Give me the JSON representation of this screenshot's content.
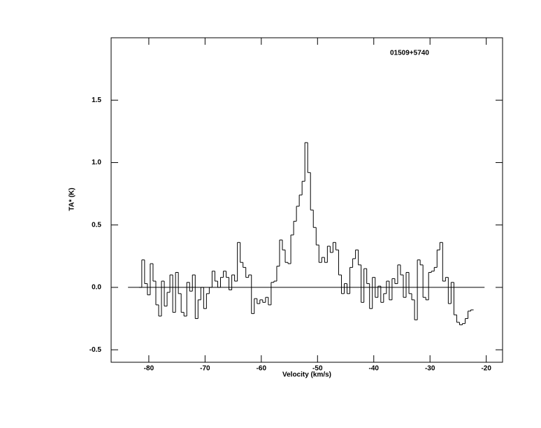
{
  "chart_data": {
    "type": "step",
    "title": "01509+5740",
    "xlabel": "Velocity (km/s)",
    "ylabel": "TA* (K)",
    "xlim": [
      -86.7,
      -17.1
    ],
    "ylim": [
      -0.6,
      2.0
    ],
    "xticks": [
      -80,
      -70,
      -60,
      -50,
      -40,
      -30,
      -20
    ],
    "yticks": [
      -0.5,
      {
        "value": 0,
        "label": "0.0"
      },
      0.5,
      {
        "value": 1,
        "label": "1.0"
      },
      1.5
    ],
    "color": "#000000",
    "baseline": {
      "x": [
        -83.7,
        -20.3
      ],
      "y": 0
    },
    "x": [
      -81.5,
      -81,
      -80.5,
      -80,
      -79.5,
      -79,
      -78.5,
      -78,
      -77.5,
      -77,
      -76.5,
      -76,
      -75.5,
      -75,
      -74.5,
      -74,
      -73.5,
      -73,
      -72.5,
      -72,
      -71.5,
      -71,
      -70.5,
      -70,
      -69.5,
      -69,
      -68.5,
      -68,
      -67.5,
      -67,
      -66.5,
      -66,
      -65.5,
      -65,
      -64.5,
      -64,
      -63.5,
      -63,
      -62.5,
      -62,
      -61.5,
      -61,
      -60.5,
      -60,
      -59.5,
      -59,
      -58.5,
      -58,
      -57.5,
      -57,
      -56.5,
      -56,
      -55.5,
      -55,
      -54.5,
      -54,
      -53.5,
      -53,
      -52.5,
      -52,
      -51.5,
      -51,
      -50.5,
      -50,
      -49.5,
      -49,
      -48.5,
      -48,
      -47.5,
      -47,
      -46.5,
      -46,
      -45.5,
      -45,
      -44.5,
      -44,
      -43.5,
      -43,
      -42.5,
      -42,
      -41.5,
      -41,
      -40.5,
      -40,
      -39.5,
      -39,
      -38.5,
      -38,
      -37.5,
      -37,
      -36.5,
      -36,
      -35.5,
      -35,
      -34.5,
      -34,
      -33.5,
      -33,
      -32.5,
      -32,
      -31.5,
      -31,
      -30.5,
      -30,
      -29.5,
      -29,
      -28.5,
      -28,
      -27.5,
      -27,
      -26.5,
      -26,
      -25.5,
      -25,
      -24.5,
      -24,
      -23.5,
      -23,
      -22.5
    ],
    "values": [
      0.0,
      0.22,
      0.03,
      -0.06,
      0.19,
      0.05,
      -0.14,
      -0.23,
      0.05,
      -0.15,
      -0.04,
      0.1,
      -0.2,
      0.12,
      -0.05,
      -0.2,
      -0.23,
      0.04,
      -0.03,
      0.1,
      -0.25,
      -0.1,
      0.0,
      -0.17,
      -0.05,
      0.0,
      0.13,
      0.05,
      0.0,
      0.08,
      0.13,
      0.08,
      -0.02,
      0.1,
      0.05,
      0.36,
      0.2,
      0.16,
      0.08,
      0.1,
      -0.21,
      -0.09,
      -0.13,
      -0.1,
      -0.12,
      -0.08,
      -0.14,
      0.04,
      0.05,
      0.17,
      0.38,
      0.3,
      0.2,
      0.19,
      0.42,
      0.53,
      0.65,
      0.74,
      0.85,
      1.16,
      0.92,
      0.62,
      0.48,
      0.34,
      0.2,
      0.24,
      0.2,
      0.33,
      0.28,
      0.36,
      0.3,
      0.1,
      -0.05,
      0.03,
      -0.05,
      0.16,
      0.23,
      0.3,
      0.18,
      -0.12,
      0.15,
      0.03,
      -0.17,
      0.08,
      -0.08,
      0.01,
      -0.12,
      -0.05,
      0.05,
      -0.1,
      0.07,
      0.03,
      0.18,
      0.1,
      -0.08,
      0.12,
      -0.05,
      -0.1,
      -0.26,
      0.22,
      0.18,
      -0.08,
      -0.1,
      0.12,
      0.13,
      0.16,
      0.3,
      0.36,
      0.05,
      0.08,
      -0.13,
      0.04,
      -0.22,
      -0.28,
      -0.3,
      -0.29,
      -0.25,
      -0.19,
      -0.18
    ]
  }
}
